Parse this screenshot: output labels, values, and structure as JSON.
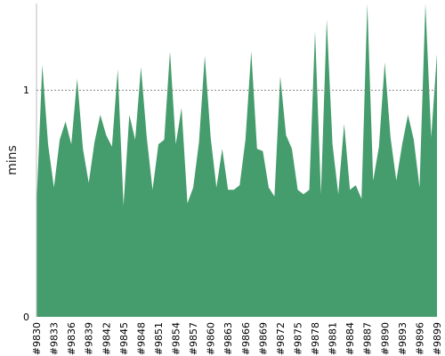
{
  "chart_data": {
    "type": "area",
    "xlabel": "",
    "ylabel": "mins",
    "ylim": [
      0,
      1.38
    ],
    "y_ticks": [
      0,
      1
    ],
    "reference_line": {
      "y": 1,
      "style": "dotted"
    },
    "grid": false,
    "fill_color": "#459c6c",
    "x_tick_labels": [
      "#9830",
      "#9833",
      "#9836",
      "#9839",
      "#9842",
      "#9845",
      "#9848",
      "#9851",
      "#9854",
      "#9857",
      "#9860",
      "#9863",
      "#9866",
      "#9869",
      "#9872",
      "#9875",
      "#9878",
      "#9881",
      "#9884",
      "#9887",
      "#9890",
      "#9893",
      "#9896",
      "#9899"
    ],
    "x": [
      9830,
      9831,
      9832,
      9833,
      9834,
      9835,
      9836,
      9837,
      9838,
      9839,
      9840,
      9841,
      9842,
      9843,
      9844,
      9845,
      9846,
      9847,
      9848,
      9849,
      9850,
      9851,
      9852,
      9853,
      9854,
      9855,
      9856,
      9857,
      9858,
      9859,
      9860,
      9861,
      9862,
      9863,
      9864,
      9865,
      9866,
      9867,
      9868,
      9869,
      9870,
      9871,
      9872,
      9873,
      9874,
      9875,
      9876,
      9877,
      9878,
      9879,
      9880,
      9881,
      9882,
      9883,
      9884,
      9885,
      9886,
      9887,
      9888,
      9889,
      9890,
      9891,
      9892,
      9893,
      9894,
      9895,
      9896,
      9897,
      9898,
      9899
    ],
    "values": [
      0.49,
      1.11,
      0.76,
      0.57,
      0.78,
      0.86,
      0.76,
      1.05,
      0.74,
      0.59,
      0.77,
      0.89,
      0.8,
      0.75,
      1.09,
      0.49,
      0.89,
      0.78,
      1.1,
      0.79,
      0.56,
      0.76,
      0.78,
      1.17,
      0.76,
      0.92,
      0.5,
      0.57,
      0.77,
      1.15,
      0.79,
      0.57,
      0.74,
      0.56,
      0.56,
      0.58,
      0.78,
      1.17,
      0.74,
      0.73,
      0.57,
      0.53,
      1.06,
      0.8,
      0.74,
      0.56,
      0.54,
      0.56,
      1.26,
      0.54,
      1.31,
      0.76,
      0.54,
      0.85,
      0.56,
      0.58,
      0.52,
      1.38,
      0.6,
      0.75,
      1.12,
      0.79,
      0.6,
      0.76,
      0.89,
      0.78,
      0.57,
      1.38,
      0.79,
      1.16
    ]
  }
}
